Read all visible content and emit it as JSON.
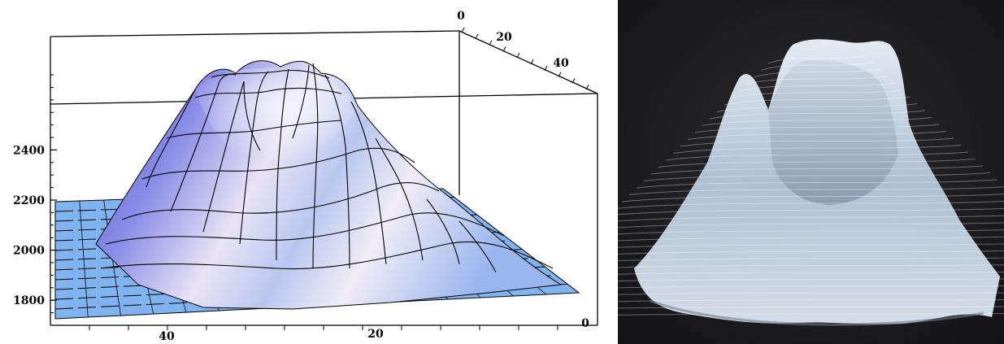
{
  "caption_fragment": "",
  "chart_data": {
    "type": "surface3d",
    "title": "",
    "xlabel": "",
    "ylabel": "",
    "zlabel": "",
    "x_range": [
      0,
      50
    ],
    "y_range": [
      0,
      50
    ],
    "zlim": [
      1700,
      2700
    ],
    "z_ticks": [
      "1800",
      "2000",
      "2200",
      "2400"
    ],
    "front_axis_ticks": [
      "40",
      "20",
      "0"
    ],
    "back_axis_ticks": [
      "0",
      "20",
      "40"
    ],
    "base_level": 1800,
    "peak_level": 2650,
    "grid": true,
    "colors": {
      "base": "#7fb2f0",
      "surface_light": "#f4eef8",
      "surface_mid": "#c7c2ee",
      "surface_dark": "#5a5fd6",
      "mesh": "#000000"
    }
  },
  "photo": {
    "subject": "3D printed translucent surface model",
    "colors": {
      "background": "#1d1d1f",
      "print_light": "#dfe7ef",
      "print_mid": "#a9b9cc",
      "print_dark": "#6c7c93"
    }
  }
}
